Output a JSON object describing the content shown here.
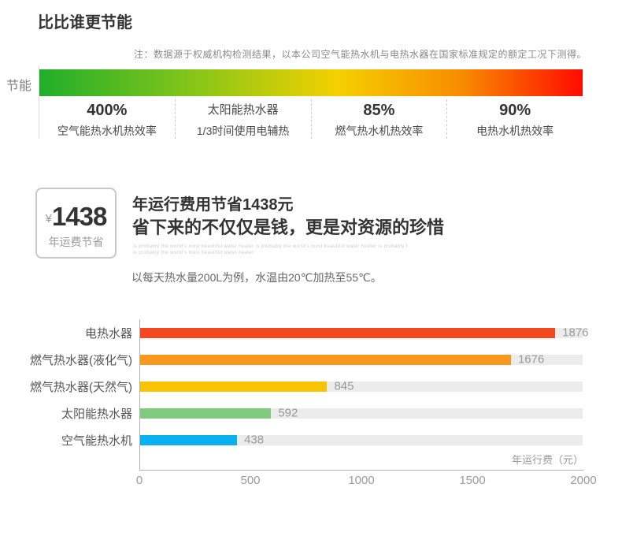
{
  "page": {
    "title": "比比谁更节能",
    "note": "注：数据源于权威机构检测结果，以本公司空气能热水机与电热水器在国家标准规定的额定工况下测得。"
  },
  "efficiency": {
    "axis_label": "节能",
    "gradient_colors": [
      "#1fae2b",
      "#8cc716",
      "#f5d000",
      "#f88b00",
      "#ff0b00"
    ],
    "items": [
      {
        "value": "400%",
        "label": "空气能热水机热效率"
      },
      {
        "value": "太阳能热水器",
        "label": "1/3时间使用电辅热"
      },
      {
        "value": "85%",
        "label": "燃气热水机热效率"
      },
      {
        "value": "90%",
        "label": "电热水机热效率"
      }
    ]
  },
  "savings": {
    "badge": {
      "currency": "¥",
      "amount": "1438",
      "caption": "年运费节省"
    },
    "headline1": "年运行费用节省1438元",
    "headline2": "省下来的不仅仅是钱，更是对资源的珍惜",
    "fineprint1": "is probably the world's most beautiful water heater is probably the world's most beautiful water heater is probably t",
    "fineprint2": "is probably the world's most beautiful water heater",
    "example": "以每天热水量200L为例，水温由20℃加热至55℃。"
  },
  "chart_data": {
    "type": "bar",
    "orientation": "horizontal",
    "title": "",
    "categories": [
      "电热水器",
      "燃气热水器(液化气)",
      "燃气热水器(天然气)",
      "太阳能热水器",
      "空气能热水机"
    ],
    "values": [
      1876,
      1676,
      845,
      592,
      438
    ],
    "colors": [
      "#f4491e",
      "#f8981f",
      "#f8c400",
      "#7fca7d",
      "#0ab1f1"
    ],
    "track_color": "#ececec",
    "xlabel": "年运行费（元）",
    "ylabel": "",
    "xlim": [
      0,
      2000
    ],
    "xticks": [
      "0",
      "500",
      "1000",
      "1500",
      "2000"
    ],
    "grid": false,
    "legend": false,
    "value_labels": true
  }
}
